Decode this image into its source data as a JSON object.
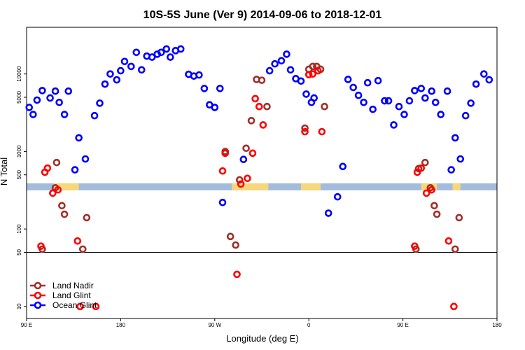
{
  "chart_data": {
    "type": "scatter",
    "title": "10S-5S June (Ver 9)   2014-09-06 to 2018-12-01",
    "xlabel": "Longitude (deg E)",
    "ylabel": "N Total",
    "y_scale": "log",
    "xlim": [
      90,
      450
    ],
    "ylim": [
      7,
      40000
    ],
    "grid": false,
    "legend_position": "bottom-left",
    "x_ticks": [
      {
        "value": 90,
        "label": "90 E"
      },
      {
        "value": 162,
        "label": "180"
      },
      {
        "value": 234,
        "label": "90 W"
      },
      {
        "value": 306,
        "label": "0"
      },
      {
        "value": 378,
        "label": "90 E"
      },
      {
        "value": 450,
        "label": "180"
      }
    ],
    "y_ticks": [
      {
        "value": 10,
        "label": "10"
      },
      {
        "value": 50,
        "label": "50"
      },
      {
        "value": 100,
        "label": "100"
      },
      {
        "value": 500,
        "label": "500"
      },
      {
        "value": 1000,
        "label": "1000"
      },
      {
        "value": 5000,
        "label": "5000"
      },
      {
        "value": 10000,
        "label": "10000"
      }
    ],
    "reference_line": 50,
    "map_strip": {
      "y_center": 350,
      "colors": {
        "ocean": "#a3bcde",
        "land": "#f7d77a"
      }
    },
    "series": [
      {
        "name": "Land Nadir",
        "color": "#a0302a",
        "points": [
          [
            102,
            55
          ],
          [
            113,
            720
          ],
          [
            112,
            340
          ],
          [
            117,
            200
          ],
          [
            119,
            155
          ],
          [
            133,
            55
          ],
          [
            136,
            140
          ],
          [
            242,
            1000
          ],
          [
            246,
            80
          ],
          [
            250,
            62
          ],
          [
            253,
            430
          ],
          [
            258,
            1100
          ],
          [
            262,
            2500
          ],
          [
            266,
            8500
          ],
          [
            270,
            8300
          ],
          [
            274,
            3800
          ],
          [
            303,
            2000
          ],
          [
            306,
            11500
          ],
          [
            309,
            12500
          ],
          [
            312,
            12500
          ],
          [
            315,
            11500
          ],
          [
            318,
            3800
          ],
          [
            388,
            55
          ],
          [
            390,
            600
          ],
          [
            395,
            720
          ],
          [
            399,
            340
          ],
          [
            402,
            200
          ],
          [
            404,
            155
          ],
          [
            418,
            55
          ],
          [
            421,
            140
          ]
        ]
      },
      {
        "name": "Land Glint",
        "color": "#ff0000",
        "points": [
          [
            101,
            60
          ],
          [
            104,
            540
          ],
          [
            106,
            610
          ],
          [
            110,
            290
          ],
          [
            114,
            320
          ],
          [
            129,
            70
          ],
          [
            131,
            10
          ],
          [
            143,
            10
          ],
          [
            240,
            560
          ],
          [
            242,
            950
          ],
          [
            251,
            26
          ],
          [
            254,
            380
          ],
          [
            259,
            450
          ],
          [
            263,
            950
          ],
          [
            265,
            4800
          ],
          [
            268,
            3800
          ],
          [
            271,
            2200
          ],
          [
            303,
            1800
          ],
          [
            306,
            9800
          ],
          [
            309,
            10000
          ],
          [
            313,
            11000
          ],
          [
            316,
            1800
          ],
          [
            387,
            60
          ],
          [
            389,
            540
          ],
          [
            392,
            610
          ],
          [
            396,
            290
          ],
          [
            400,
            320
          ],
          [
            413,
            70
          ],
          [
            417,
            10
          ]
        ]
      },
      {
        "name": "Ocean Glint",
        "color": "#0000ff",
        "points": [
          [
            92,
            3700
          ],
          [
            95,
            3000
          ],
          [
            98,
            4600
          ],
          [
            102,
            6100
          ],
          [
            108,
            4900
          ],
          [
            112,
            6000
          ],
          [
            115,
            4300
          ],
          [
            119,
            3000
          ],
          [
            122,
            6000
          ],
          [
            127,
            580
          ],
          [
            130,
            1500
          ],
          [
            135,
            800
          ],
          [
            142,
            2900
          ],
          [
            146,
            4200
          ],
          [
            150,
            7400
          ],
          [
            154,
            10000
          ],
          [
            159,
            8400
          ],
          [
            162,
            11000
          ],
          [
            165,
            14500
          ],
          [
            170,
            12500
          ],
          [
            174,
            19000
          ],
          [
            178,
            11300
          ],
          [
            182,
            17000
          ],
          [
            186,
            16500
          ],
          [
            190,
            18000
          ],
          [
            193,
            19000
          ],
          [
            197,
            21000
          ],
          [
            200,
            16500
          ],
          [
            204,
            20000
          ],
          [
            208,
            21000
          ],
          [
            214,
            9900
          ],
          [
            218,
            9400
          ],
          [
            222,
            9700
          ],
          [
            226,
            6500
          ],
          [
            230,
            4000
          ],
          [
            234,
            3700
          ],
          [
            238,
            6500
          ],
          [
            240,
            220
          ],
          [
            256,
            790
          ],
          [
            276,
            11000
          ],
          [
            280,
            13500
          ],
          [
            285,
            14800
          ],
          [
            289,
            18000
          ],
          [
            292,
            11300
          ],
          [
            296,
            8700
          ],
          [
            300,
            8100
          ],
          [
            304,
            5500
          ],
          [
            308,
            4300
          ],
          [
            310,
            4900
          ],
          [
            321,
            160
          ],
          [
            328,
            260
          ],
          [
            332,
            640
          ],
          [
            336,
            8500
          ],
          [
            340,
            6700
          ],
          [
            344,
            5300
          ],
          [
            348,
            4300
          ],
          [
            351,
            7700
          ],
          [
            355,
            3500
          ],
          [
            359,
            8200
          ],
          [
            364,
            4500
          ],
          [
            367,
            4500
          ],
          [
            371,
            2200
          ],
          [
            375,
            3800
          ],
          [
            379,
            3000
          ],
          [
            383,
            4500
          ],
          [
            387,
            6100
          ],
          [
            392,
            6500
          ],
          [
            395,
            4900
          ],
          [
            400,
            6000
          ],
          [
            403,
            4300
          ],
          [
            407,
            3000
          ],
          [
            412,
            6000
          ],
          [
            415,
            580
          ],
          [
            418,
            1500
          ],
          [
            422,
            800
          ],
          [
            426,
            2900
          ],
          [
            430,
            4200
          ],
          [
            434,
            7400
          ],
          [
            440,
            10000
          ],
          [
            444,
            8400
          ]
        ]
      }
    ]
  }
}
